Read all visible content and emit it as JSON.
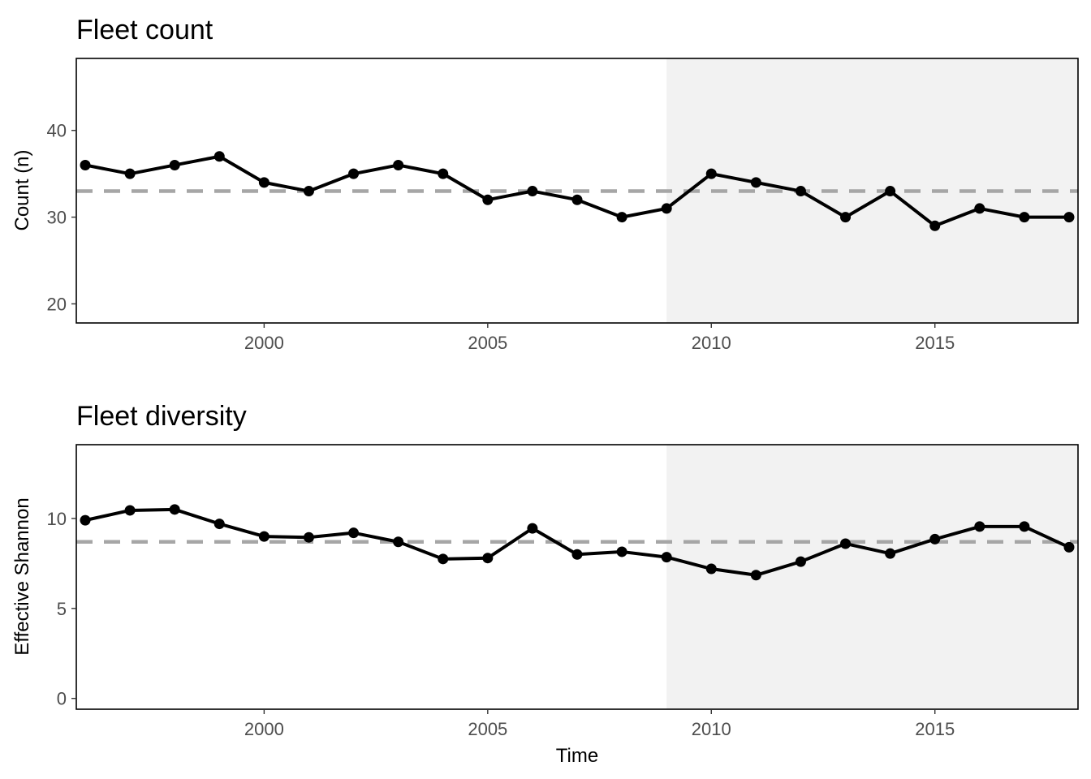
{
  "colors": {
    "line": "#000000",
    "mean_line": "#a6a6a6",
    "shade": "#f2f2f2",
    "panel_border": "#000000"
  },
  "chart_data": [
    {
      "type": "line",
      "title": "Fleet count",
      "xlabel": "",
      "ylabel": "Count (n)",
      "xlim": [
        1995.8,
        2018.2
      ],
      "ylim": [
        17.8,
        48.3
      ],
      "x_ticks": [
        2000,
        2005,
        2010,
        2015
      ],
      "x_tick_labels": [
        "2000",
        "2005",
        "2010",
        "2015"
      ],
      "y_ticks": [
        20,
        30,
        40
      ],
      "y_tick_labels": [
        "20",
        "30",
        "40"
      ],
      "shaded_region": [
        2009,
        2018.2
      ],
      "reference_line": 33,
      "grid": false,
      "series": [
        {
          "x": [
            1996,
            1997,
            1998,
            1999,
            2000,
            2001,
            2002,
            2003,
            2004,
            2005,
            2006,
            2007,
            2008,
            2009,
            2010,
            2011,
            2012,
            2013,
            2014,
            2015,
            2016,
            2017,
            2018
          ],
          "values": [
            36,
            35,
            36,
            37,
            34,
            33,
            35,
            36,
            35,
            32,
            33,
            32,
            30,
            31,
            35,
            34,
            33,
            30,
            33,
            29,
            31,
            30,
            30
          ]
        }
      ]
    },
    {
      "type": "line",
      "title": "Fleet diversity",
      "xlabel": "Time",
      "ylabel": "Effective Shannon",
      "xlim": [
        1995.8,
        2018.2
      ],
      "ylim": [
        -0.6,
        14.1
      ],
      "x_ticks": [
        2000,
        2005,
        2010,
        2015
      ],
      "x_tick_labels": [
        "2000",
        "2005",
        "2010",
        "2015"
      ],
      "y_ticks": [
        0,
        5,
        10
      ],
      "y_tick_labels": [
        "0",
        "5",
        "10"
      ],
      "shaded_region": [
        2009,
        2018.2
      ],
      "reference_line": 8.7,
      "grid": false,
      "series": [
        {
          "x": [
            1996,
            1997,
            1998,
            1999,
            2000,
            2001,
            2002,
            2003,
            2004,
            2005,
            2006,
            2007,
            2008,
            2009,
            2010,
            2011,
            2012,
            2013,
            2014,
            2015,
            2016,
            2017,
            2018
          ],
          "values": [
            9.9,
            10.45,
            10.5,
            9.7,
            9.0,
            8.95,
            9.2,
            8.7,
            7.75,
            7.8,
            9.45,
            8.0,
            8.15,
            7.85,
            7.2,
            6.85,
            7.6,
            8.6,
            8.05,
            8.85,
            9.55,
            9.55,
            8.4
          ]
        }
      ]
    }
  ]
}
